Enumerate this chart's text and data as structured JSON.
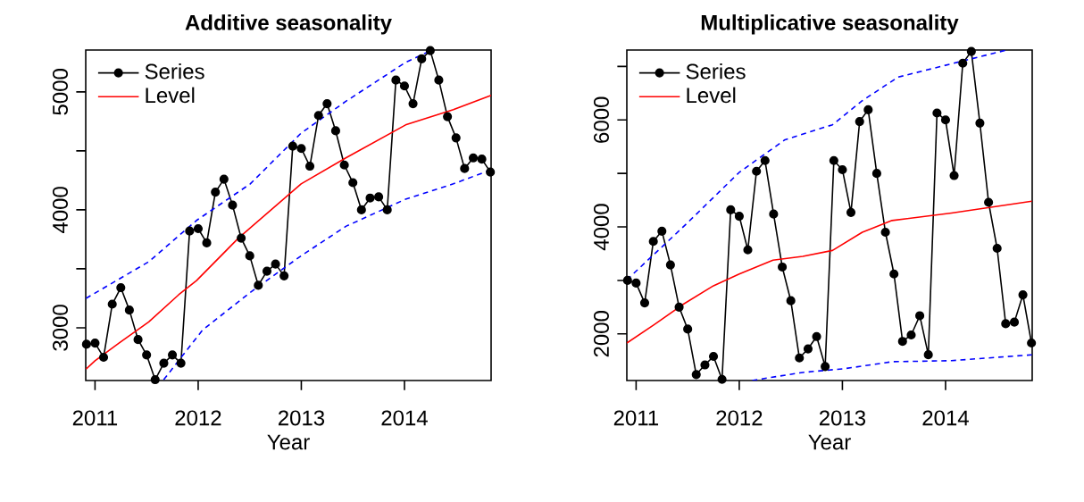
{
  "chart_data": [
    {
      "type": "line",
      "title": "Additive seasonality",
      "xlabel": "Year",
      "xlim": [
        2010.91,
        2014.84
      ],
      "ylim": [
        2553,
        5355
      ],
      "xticks": [
        2011,
        2012,
        2013,
        2014
      ],
      "yticks": [
        3000,
        {
          "value": 3500,
          "label": null
        },
        4000,
        {
          "value": 4500,
          "label": null
        },
        5000
      ],
      "legend": "top left",
      "grid": false,
      "series": [
        {
          "name": "Series",
          "color": "#000000",
          "marker": "circle",
          "line_style": "solid",
          "x": [
            2010.917,
            2011,
            2011.083,
            2011.167,
            2011.25,
            2011.333,
            2011.417,
            2011.5,
            2011.583,
            2011.667,
            2011.75,
            2011.833,
            2011.917,
            2012,
            2012.083,
            2012.167,
            2012.25,
            2012.333,
            2012.417,
            2012.5,
            2012.583,
            2012.667,
            2012.75,
            2012.833,
            2012.917,
            2013,
            2013.083,
            2013.167,
            2013.25,
            2013.333,
            2013.417,
            2013.5,
            2013.583,
            2013.667,
            2013.75,
            2013.833,
            2013.917,
            2014,
            2014.083,
            2014.167,
            2014.25,
            2014.333,
            2014.417,
            2014.5,
            2014.583,
            2014.667,
            2014.75,
            2014.833
          ],
          "values": [
            2860,
            2870,
            2750,
            3200,
            3340,
            3150,
            2900,
            2770,
            2560,
            2700,
            2770,
            2700,
            3820,
            3840,
            3720,
            4150,
            4260,
            4040,
            3760,
            3610,
            3360,
            3480,
            3540,
            3440,
            4540,
            4520,
            4370,
            4800,
            4900,
            4670,
            4380,
            4230,
            4000,
            4100,
            4110,
            4000,
            5100,
            5050,
            4900,
            5280,
            5350,
            5100,
            4790,
            4610,
            4350,
            4440,
            4430,
            4320
          ]
        },
        {
          "name": "Level",
          "color": "#ff0000",
          "marker": "none",
          "line_style": "solid",
          "x": [
            2010.913,
            2011,
            2011.232,
            2011.521,
            2011.811,
            2011.984,
            2012.39,
            2012.998,
            2013.432,
            2014.011,
            2014.474,
            2014.84
          ],
          "values": [
            2650,
            2720,
            2870,
            3050,
            3280,
            3400,
            3760,
            4220,
            4440,
            4720,
            4850,
            4970
          ]
        },
        {
          "color": "#0000ff",
          "marker": "none",
          "line_style": "dashed",
          "x": [
            2010.913,
            2011.521,
            2011.984,
            2012.505,
            2012.998,
            2013.432,
            2014.011,
            2014.254
          ],
          "values": [
            3250,
            3560,
            3910,
            4220,
            4650,
            4920,
            5250,
            5350
          ]
        },
        {
          "color": "#0000ff",
          "marker": "none",
          "line_style": "dashed",
          "x": [
            2011.666,
            2012.042,
            2012.505,
            2012.998,
            2013.432,
            2014.011,
            2014.474,
            2014.84
          ],
          "values": [
            2560,
            2980,
            3300,
            3610,
            3860,
            4090,
            4220,
            4340
          ]
        }
      ]
    },
    {
      "type": "line",
      "title": "Multiplicative seasonality",
      "xlabel": "Year",
      "xlim": [
        2010.91,
        2014.84
      ],
      "ylim": [
        1129,
        7307
      ],
      "xticks": [
        2011,
        2012,
        2013,
        2014
      ],
      "yticks": [
        2000,
        {
          "value": 3000,
          "label": null
        },
        4000,
        {
          "value": 5000,
          "label": null
        },
        6000,
        {
          "value": 7000,
          "label": null
        }
      ],
      "legend": "top left",
      "grid": false,
      "series": [
        {
          "name": "Series",
          "color": "#000000",
          "marker": "circle",
          "line_style": "solid",
          "x": [
            2010.917,
            2011,
            2011.083,
            2011.167,
            2011.25,
            2011.333,
            2011.417,
            2011.5,
            2011.583,
            2011.667,
            2011.75,
            2011.833,
            2011.917,
            2012,
            2012.083,
            2012.167,
            2012.25,
            2012.333,
            2012.417,
            2012.5,
            2012.583,
            2012.667,
            2012.75,
            2012.833,
            2012.917,
            2013,
            2013.083,
            2013.167,
            2013.25,
            2013.333,
            2013.417,
            2013.5,
            2013.583,
            2013.667,
            2013.75,
            2013.833,
            2013.917,
            2014,
            2014.083,
            2014.167,
            2014.25,
            2014.333,
            2014.417,
            2014.5,
            2014.583,
            2014.667,
            2014.75,
            2014.833
          ],
          "values": [
            3000,
            2950,
            2580,
            3730,
            3920,
            3290,
            2500,
            2090,
            1240,
            1420,
            1580,
            1150,
            4320,
            4200,
            3570,
            5040,
            5240,
            4240,
            3250,
            2620,
            1550,
            1720,
            1950,
            1390,
            5240,
            5070,
            4270,
            5970,
            6190,
            5000,
            3900,
            3120,
            1860,
            1980,
            2340,
            1610,
            6130,
            6000,
            4960,
            7060,
            7280,
            5940,
            4460,
            3600,
            2190,
            2220,
            2730,
            1830
          ]
        },
        {
          "name": "Level",
          "color": "#ff0000",
          "marker": "none",
          "line_style": "solid",
          "x": [
            2010.91,
            2011.173,
            2011.462,
            2011.75,
            2012.0,
            2012.327,
            2012.616,
            2012.904,
            2013.193,
            2013.481,
            2014.058,
            2014.837
          ],
          "values": [
            1830,
            2170,
            2560,
            2900,
            3120,
            3380,
            3450,
            3560,
            3900,
            4120,
            4260,
            4480
          ]
        },
        {
          "color": "#0000ff",
          "marker": "none",
          "line_style": "dashed",
          "x": [
            2010.91,
            2011.462,
            2012.0,
            2012.443,
            2012.904,
            2013.193,
            2013.539,
            2014.058,
            2014.578
          ],
          "values": [
            3010,
            4010,
            5020,
            5630,
            5910,
            6360,
            6800,
            7050,
            7300
          ]
        },
        {
          "color": "#0000ff",
          "marker": "none",
          "line_style": "dashed",
          "x": [
            2012.125,
            2012.616,
            2013.02,
            2013.481,
            2014.058,
            2014.837
          ],
          "values": [
            1130,
            1280,
            1350,
            1480,
            1500,
            1610
          ]
        }
      ]
    }
  ]
}
